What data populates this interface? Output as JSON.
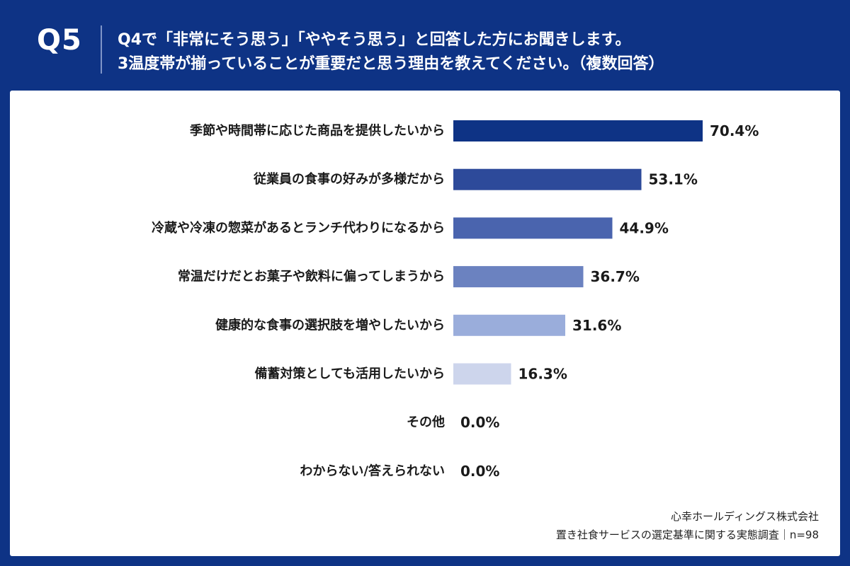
{
  "header": {
    "qnum": "Q5",
    "line1": "Q4で「非常にそう思う」「ややそう思う」と回答した方にお聞きします。",
    "line2": "3温度帯が揃っていることが重要だと思う理由を教えてください。（複数回答）"
  },
  "chart_data": {
    "type": "bar",
    "orientation": "horizontal",
    "categories": [
      "季節や時間帯に応じた商品を提供したいから",
      "従業員の食事の好みが多様だから",
      "冷蔵や冷凍の惣菜があるとランチ代わりになるから",
      "常温だけだとお菓子や飲料に偏ってしまうから",
      "健康的な食事の選択肢を増やしたいから",
      "備蓄対策としても活用したいから",
      "その他",
      "わからない/答えられない"
    ],
    "values": [
      70.4,
      53.1,
      44.9,
      36.7,
      31.6,
      16.3,
      0.0,
      0.0
    ],
    "value_labels": [
      "70.4%",
      "53.1%",
      "44.9%",
      "36.7%",
      "31.6%",
      "16.3%",
      "0.0%",
      "0.0%"
    ],
    "bar_colors": [
      "#0e3385",
      "#2d4a9a",
      "#4a64ae",
      "#6b82c0",
      "#9aaddb",
      "#cdd5ec",
      "#cdd5ec",
      "#cdd5ec"
    ],
    "xlim": [
      0,
      100
    ],
    "grid": false
  },
  "source": {
    "line1": "心幸ホールディングス株式会社",
    "line2": "置き社食サービスの選定基準に関する実態調査｜n=98"
  }
}
